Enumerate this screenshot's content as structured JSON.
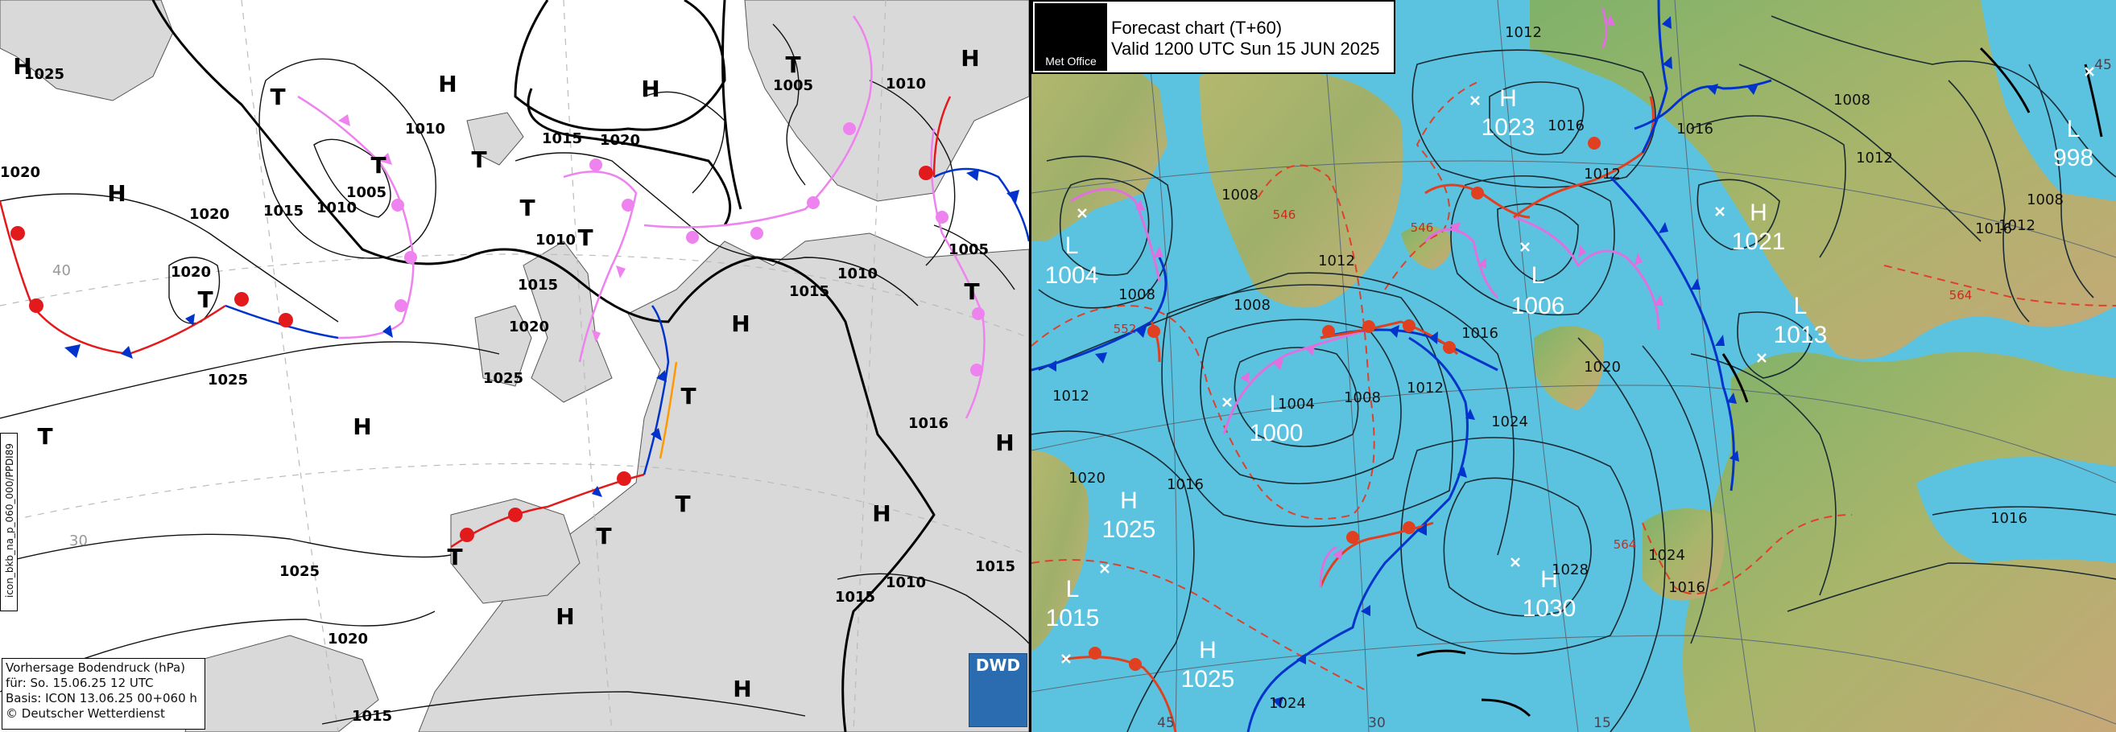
{
  "dwd_chart": {
    "info_box": {
      "line1": "Vorhersage Bodendruck (hPa)",
      "line2": "für:  So. 15.06.25  12 UTC",
      "line3": "Basis: ICON  13.06.25 00+060 h",
      "line4": "© Deutscher Wetterdienst"
    },
    "side_code": "icon_bkb_na_p_060_000/PPDI89",
    "logo_text": "DWD",
    "pressure_centers": [
      {
        "label": "H"
      },
      {
        "label": "H"
      },
      {
        "label": "H"
      },
      {
        "label": "H"
      },
      {
        "label": "H"
      },
      {
        "label": "H"
      },
      {
        "label": "H"
      },
      {
        "label": "H"
      },
      {
        "label": "H"
      },
      {
        "label": "H"
      },
      {
        "label": "H"
      },
      {
        "label": "T"
      },
      {
        "label": "T"
      },
      {
        "label": "T"
      },
      {
        "label": "T"
      },
      {
        "label": "T"
      },
      {
        "label": "T"
      },
      {
        "label": "T"
      },
      {
        "label": "T"
      },
      {
        "label": "T"
      },
      {
        "label": "T"
      },
      {
        "label": "T"
      },
      {
        "label": "T"
      },
      {
        "label": "T"
      },
      {
        "label": "T"
      }
    ],
    "isobar_labels": [
      "1025",
      "1020",
      "1020",
      "1015",
      "1010",
      "1010",
      "1005",
      "1015",
      "1020",
      "1005",
      "1010",
      "1010",
      "1015",
      "1015",
      "1010",
      "1020",
      "1025",
      "1020",
      "1025",
      "1025",
      "1020",
      "1015",
      "1010",
      "1005",
      "1015",
      "1016",
      "1005",
      "1015"
    ],
    "grid_labels": [
      "40",
      "30"
    ]
  },
  "metoffice_chart": {
    "logo_text": "Met Office",
    "title": "Forecast chart (T+60)",
    "valid": "Valid 1200 UTC Sun 15 JUN 2025",
    "pressure_centers": [
      {
        "letter": "H",
        "value": "1023"
      },
      {
        "letter": "L",
        "value": "1004"
      },
      {
        "letter": "L",
        "value": "1006"
      },
      {
        "letter": "H",
        "value": "1021"
      },
      {
        "letter": "L",
        "value": "1013"
      },
      {
        "letter": "L",
        "value": "998"
      },
      {
        "letter": "L",
        "value": "1000"
      },
      {
        "letter": "H",
        "value": "1025"
      },
      {
        "letter": "L",
        "value": "1015"
      },
      {
        "letter": "H",
        "value": "1025"
      },
      {
        "letter": "H",
        "value": "1030"
      }
    ],
    "isobar_labels": [
      "1012",
      "1008",
      "1008",
      "1012",
      "1016",
      "1012",
      "1016",
      "1008",
      "1012",
      "1016",
      "1012",
      "1008",
      "1012",
      "1016",
      "1020",
      "1008",
      "1004",
      "1008",
      "1012",
      "1016",
      "1024",
      "1020",
      "1016",
      "1028",
      "1024",
      "1020",
      "1016",
      "1016",
      "1024"
    ],
    "thickness_labels": [
      "546",
      "546",
      "552",
      "564",
      "564"
    ],
    "grid_labels": [
      "45",
      "30",
      "45",
      "15"
    ]
  }
}
